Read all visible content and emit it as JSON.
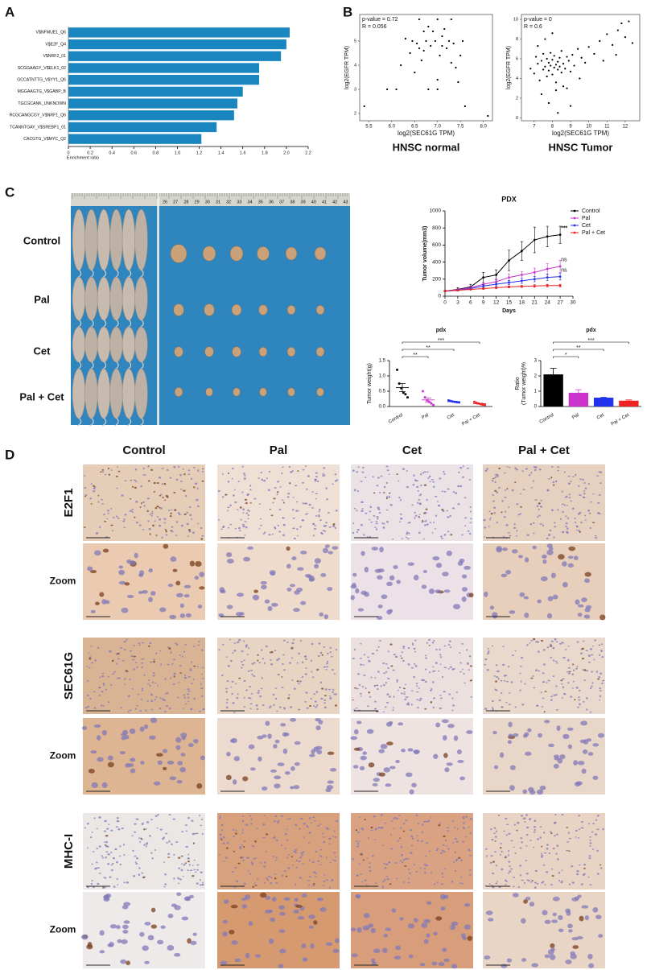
{
  "panels": [
    "A",
    "B",
    "C",
    "D"
  ],
  "photo": {
    "rows": [
      "Control",
      "Pal",
      "Cet",
      "Pal + Cet"
    ],
    "ruler": [
      "26",
      "27",
      "28",
      "29",
      "30",
      "31",
      "32",
      "33",
      "34",
      "35",
      "36",
      "37",
      "38",
      "39",
      "40",
      "41",
      "42",
      "43"
    ]
  },
  "ihc": {
    "columns": [
      "Control",
      "Pal",
      "Cet",
      "Pal + Cet"
    ],
    "rows": [
      "E2F1",
      "Zoom",
      "SEC61G",
      "Zoom",
      "MHC-I",
      "Zoom"
    ]
  },
  "chart_data": [
    {
      "type": "hbar",
      "xlabel": "Enrichment ratio",
      "color": "#1a86c0",
      "categories": [
        "V$NFMUE1_Q6",
        "V$E2F_Q4",
        "V$NRF2_01",
        "SCGGAAGY_V$ELK1_02",
        "GCCATNTTG_V$YY1_Q6",
        "MGGAAGTG_V$GABP_B",
        "TGCGCANK_UNKNOWN",
        "RCGCANGCGY_V$NRF1_Q6",
        "TCANNTGAY_V$SREBP1_01",
        "CACGTG_V$MYC_Q2"
      ],
      "values": [
        2.03,
        2.0,
        1.95,
        1.75,
        1.75,
        1.6,
        1.55,
        1.52,
        1.36,
        1.22
      ],
      "xlim": [
        0,
        2.2
      ],
      "xticks": [
        0,
        0.2,
        0.4,
        0.6,
        0.8,
        {
          "value": 1,
          "label": "1.0"
        },
        1.2,
        1.4,
        1.6,
        1.8,
        {
          "value": 2,
          "label": "2.0"
        },
        2.2
      ]
    },
    {
      "type": "scatter",
      "title": "HNSC normal",
      "xlabel": "log2(SEC61G TPM)",
      "ylabel": "log2(EGFR TPM)",
      "annotations": [
        "p-value = 0.72",
        "R = 0.056"
      ],
      "color": "#000000",
      "x": [
        5.4,
        5.9,
        6.1,
        6.2,
        6.4,
        6.45,
        6.5,
        6.55,
        6.6,
        6.6,
        6.65,
        6.7,
        6.7,
        6.75,
        6.8,
        6.8,
        6.85,
        6.9,
        6.95,
        7.0,
        7.0,
        7.05,
        7.1,
        7.1,
        7.15,
        7.2,
        7.25,
        7.3,
        7.3,
        7.35,
        7.4,
        7.45,
        7.5,
        7.55,
        7.6,
        7.0,
        6.3,
        8.1
      ],
      "values": [
        2.3,
        3.0,
        3.0,
        4.0,
        4.5,
        5.0,
        3.7,
        4.9,
        4.7,
        5.9,
        4.2,
        5.4,
        4.6,
        5.0,
        5.6,
        3.0,
        4.8,
        5.4,
        5.0,
        5.9,
        3.4,
        4.4,
        5.2,
        4.8,
        5.5,
        4.7,
        5.0,
        5.9,
        4.1,
        4.9,
        3.9,
        3.3,
        4.4,
        5.0,
        2.3,
        3.0,
        5.1,
        1.9
      ],
      "xlim": [
        5.3,
        8.2
      ],
      "xticks": [
        5.5,
        {
          "value": 6,
          "label": "6.0"
        },
        6.5,
        {
          "value": 7,
          "label": "7.0"
        },
        7.5,
        {
          "value": 8,
          "label": "8.0"
        }
      ],
      "ylim": [
        1.7,
        6.1
      ],
      "yticks": [
        2,
        3,
        4,
        5
      ]
    },
    {
      "type": "scatter",
      "title": "HNSC Tumor",
      "xlabel": "log2(SEC61G TPM)",
      "ylabel": "log2(EGFR TPM)",
      "annotations": [
        "p-value = 0",
        "R = 0.6"
      ],
      "color": "#000000",
      "x": [
        6.8,
        7.0,
        7.1,
        7.2,
        7.3,
        7.4,
        7.5,
        7.5,
        7.6,
        7.7,
        7.7,
        7.8,
        7.8,
        7.9,
        7.9,
        8.0,
        8.0,
        8.1,
        8.1,
        8.2,
        8.2,
        8.3,
        8.3,
        8.4,
        8.4,
        8.5,
        8.5,
        8.6,
        8.7,
        8.8,
        8.9,
        9.0,
        9.1,
        9.2,
        9.4,
        9.6,
        9.8,
        10.0,
        10.3,
        10.6,
        11.0,
        11.3,
        11.6,
        11.8,
        12.0,
        12.2,
        12.4,
        7.4,
        7.8,
        8.2,
        8.6,
        9.0,
        7.6,
        8.0,
        8.8,
        9.5,
        10.8,
        11.5,
        8.3,
        7.2
      ],
      "values": [
        5.0,
        4.5,
        6.2,
        5.5,
        3.8,
        5.8,
        4.9,
        6.5,
        5.2,
        4.2,
        6.0,
        5.6,
        4.8,
        5.3,
        6.6,
        5.9,
        4.4,
        5.1,
        6.3,
        5.4,
        3.6,
        5.7,
        4.9,
        6.1,
        5.2,
        4.6,
        6.8,
        5.5,
        5.0,
        6.2,
        5.8,
        4.7,
        6.4,
        5.3,
        7.0,
        6.1,
        5.6,
        7.2,
        6.5,
        7.8,
        8.5,
        7.4,
        8.9,
        9.6,
        8.2,
        9.8,
        7.6,
        2.4,
        1.5,
        2.8,
        3.2,
        1.2,
        8.0,
        8.6,
        3.0,
        4.0,
        5.8,
        6.4,
        0.5,
        7.3
      ],
      "xlim": [
        6.3,
        12.8
      ],
      "xticks": [
        7,
        8,
        9,
        10,
        11,
        12
      ],
      "ylim": [
        -0.3,
        10.5
      ],
      "yticks": [
        0,
        2,
        4,
        6,
        8,
        10
      ]
    },
    {
      "type": "line",
      "title": "PDX",
      "xlabel": "Days",
      "ylabel": "Tumor volume(mm3)",
      "legend": "top-right",
      "x": [
        0,
        3,
        6,
        9,
        12,
        15,
        18,
        21,
        24,
        27
      ],
      "series": [
        {
          "name": "Control",
          "color": "#000000",
          "values": [
            60,
            80,
            110,
            220,
            250,
            420,
            530,
            660,
            700,
            720
          ],
          "errors": [
            10,
            20,
            30,
            60,
            60,
            120,
            110,
            150,
            120,
            100
          ]
        },
        {
          "name": "Pal",
          "color": "#cc33cc",
          "values": [
            60,
            75,
            100,
            140,
            170,
            220,
            250,
            280,
            320,
            350
          ],
          "errors": [
            5,
            10,
            15,
            20,
            30,
            40,
            40,
            50,
            60,
            70
          ]
        },
        {
          "name": "Cet",
          "color": "#2233ee",
          "values": [
            60,
            70,
            90,
            120,
            140,
            160,
            180,
            200,
            220,
            230
          ],
          "errors": [
            5,
            8,
            10,
            15,
            20,
            25,
            30,
            30,
            35,
            40
          ]
        },
        {
          "name": "Pal + Cet",
          "color": "#ee2222",
          "values": [
            60,
            70,
            80,
            90,
            100,
            110,
            115,
            120,
            125,
            125
          ],
          "errors": [
            5,
            5,
            8,
            10,
            10,
            12,
            12,
            15,
            15,
            15
          ]
        }
      ],
      "annotations": [
        {
          "text": "***",
          "series": "Control"
        },
        {
          "text": "ns",
          "series": "Pal"
        },
        {
          "text": "ns",
          "series": "Cet"
        }
      ],
      "xlim": [
        0,
        30
      ],
      "xticks": [
        0,
        3,
        6,
        9,
        12,
        15,
        18,
        21,
        24,
        27,
        30
      ],
      "ylim": [
        0,
        1000
      ],
      "yticks": [
        0,
        200,
        400,
        600,
        800,
        1000
      ]
    },
    {
      "type": "dot",
      "title": "pdx",
      "ylabel": [
        "Tumor weight(g)"
      ],
      "categories": [
        "Control",
        "Pal",
        "Cet",
        "Pal + Cet"
      ],
      "colors": [
        "#000000",
        "#cc33cc",
        "#2233ee",
        "#ee2222"
      ],
      "values": [
        [
          1.2,
          0.75,
          0.6,
          0.45,
          0.4,
          0.3
        ],
        [
          0.5,
          0.3,
          0.2,
          0.15,
          0.1,
          0.05
        ],
        [
          0.2,
          0.18,
          0.16,
          0.15,
          0.14,
          0.13
        ],
        [
          0.15,
          0.12,
          0.1,
          0.08,
          0.06,
          0.05
        ]
      ],
      "significance": [
        {
          "label": "**",
          "groups": [
            "Control",
            "Pal"
          ]
        },
        {
          "label": "**",
          "groups": [
            "Control",
            "Cet"
          ]
        },
        {
          "label": "***",
          "groups": [
            "Control",
            "Pal + Cet"
          ]
        }
      ],
      "ylim": [
        0,
        1.5
      ],
      "yticks": [
        {
          "value": 0,
          "label": "0.0"
        },
        0.5,
        {
          "value": 1,
          "label": "1.0"
        },
        1.5
      ]
    },
    {
      "type": "bar",
      "title": "pdx",
      "ylabel": [
        "Ratio",
        "(Tumor weight)%"
      ],
      "categories": [
        "Control",
        "Pal",
        "Cet",
        "Pal + Cet"
      ],
      "colors": [
        "#000000",
        "#cc33cc",
        "#2233ee",
        "#ee2222"
      ],
      "values": [
        2.1,
        0.9,
        0.58,
        0.38
      ],
      "errors": [
        0.4,
        0.2,
        0.03,
        0.05
      ],
      "significance": [
        {
          "label": "*",
          "groups": [
            "Control",
            "Pal"
          ]
        },
        {
          "label": "**",
          "groups": [
            "Control",
            "Cet"
          ]
        },
        {
          "label": "***",
          "groups": [
            "Control",
            "Pal + Cet"
          ]
        }
      ],
      "ylim": [
        0,
        3
      ],
      "yticks": [
        0,
        1,
        2,
        3
      ]
    }
  ]
}
